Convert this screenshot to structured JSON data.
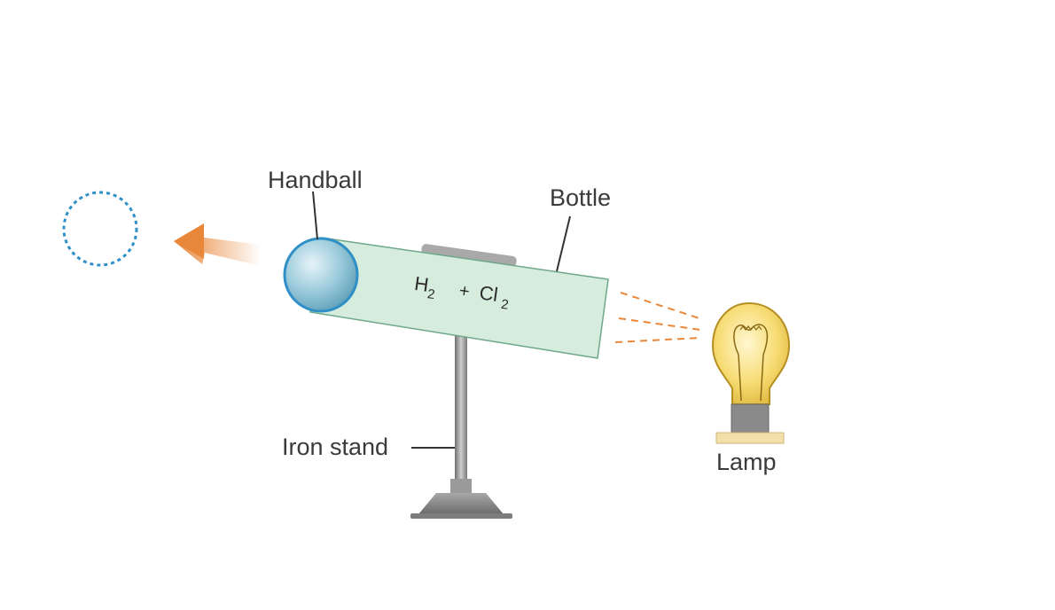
{
  "labels": {
    "handball": "Handball",
    "bottle": "Bottle",
    "iron_stand": "Iron stand",
    "lamp": "Lamp"
  },
  "formula": {
    "h": "H",
    "h_sub": "2",
    "plus": "+",
    "cl": "Cl",
    "cl_sub": "2"
  },
  "colors": {
    "bottle_fill": "#d6ecdd",
    "ball_fill": "#8ec3d6",
    "ball_outline": "#2f8fc6",
    "arrow": "#e8873a",
    "light_rays": "#e8873a",
    "bulb_glass": "#f6d96b",
    "stand_metal": "#8c8c8c",
    "dotted_circle": "#2f8fc6"
  }
}
